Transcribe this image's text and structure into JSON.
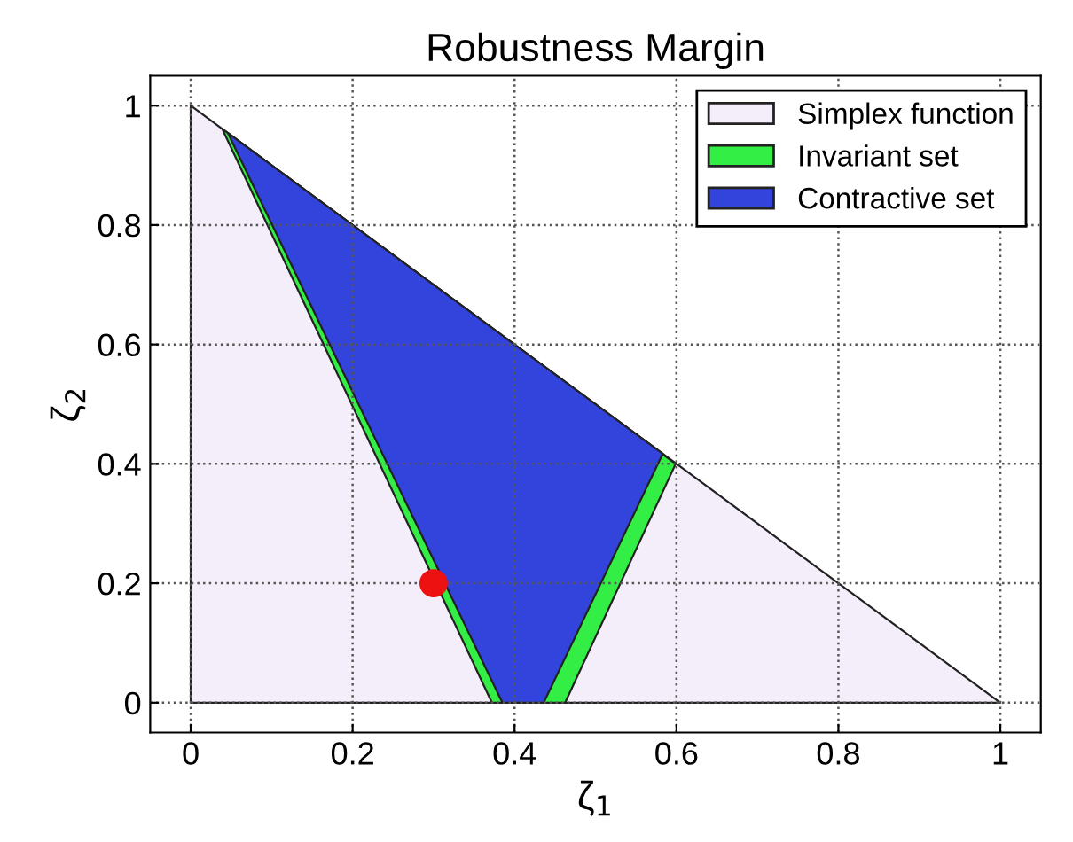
{
  "chart_data": {
    "type": "area",
    "title": "Robustness Margin",
    "xlabel": "ζ$_{1}$",
    "ylabel": "ζ$_{2}$",
    "xlim": [
      -0.05,
      1.05
    ],
    "ylim": [
      -0.05,
      1.05
    ],
    "xticks": [
      0,
      0.2,
      0.4,
      0.6,
      0.8,
      1
    ],
    "yticks": [
      0,
      0.2,
      0.4,
      0.6,
      0.8,
      1
    ],
    "grid": true,
    "legend": "top right",
    "series": [
      {
        "name": "Simplex function",
        "color": "#f4eefa",
        "x": [
          0,
          1,
          0
        ],
        "values": [
          0,
          0,
          1
        ]
      },
      {
        "name": "Invariant set",
        "color": "#33ee44",
        "x": [
          0.039,
          0.372,
          0.4625,
          0.599
        ],
        "values": [
          0.961,
          0,
          0,
          0.4
        ]
      },
      {
        "name": "Contractive set",
        "color": "#3344dd",
        "x": [
          0.046,
          0.385,
          0.436,
          0.583
        ],
        "values": [
          0.954,
          0,
          0,
          0.417
        ]
      },
      {
        "type": "scatter",
        "color": "#ee1111",
        "x": [
          0.3
        ],
        "values": [
          0.2
        ]
      }
    ]
  }
}
